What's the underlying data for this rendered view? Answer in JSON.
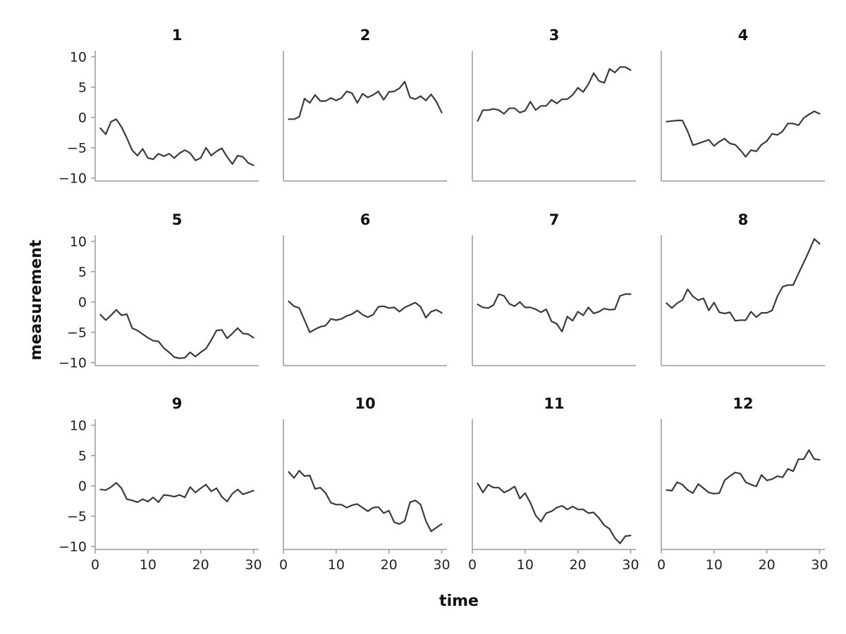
{
  "chart_data": {
    "type": "line",
    "layout": "facet-grid",
    "xlabel": "time",
    "ylabel": "measurement",
    "xlim": [
      0,
      31
    ],
    "ylim": [
      -10.5,
      11
    ],
    "xticks": [
      0,
      10,
      20,
      30
    ],
    "yticks": [
      -10,
      -5,
      0,
      5,
      10
    ],
    "line_color": "#3b3b3b",
    "axis_color": "#9a9a9a",
    "x": [
      1,
      2,
      3,
      4,
      5,
      6,
      7,
      8,
      9,
      10,
      11,
      12,
      13,
      14,
      15,
      16,
      17,
      18,
      19,
      20,
      21,
      22,
      23,
      24,
      25,
      26,
      27,
      28,
      29,
      30
    ],
    "panels": [
      {
        "title": "1",
        "values": [
          -1.8,
          -2.8,
          -0.7,
          -0.3,
          -1.6,
          -3.4,
          -5.4,
          -6.3,
          -5.2,
          -6.7,
          -6.9,
          -6.0,
          -6.4,
          -6.0,
          -6.7,
          -5.9,
          -5.4,
          -5.9,
          -7.1,
          -6.7,
          -5.0,
          -6.3,
          -5.6,
          -5.1,
          -6.5,
          -7.7,
          -6.3,
          -6.5,
          -7.5,
          -7.9
        ]
      },
      {
        "title": "2",
        "values": [
          -0.3,
          -0.3,
          0.1,
          3.1,
          2.4,
          3.7,
          2.7,
          2.7,
          3.2,
          2.8,
          3.2,
          4.3,
          4.0,
          2.4,
          3.9,
          3.3,
          3.7,
          4.3,
          2.9,
          4.2,
          4.3,
          4.8,
          5.9,
          3.3,
          3.0,
          3.5,
          2.8,
          3.8,
          2.6,
          0.8
        ]
      },
      {
        "title": "3",
        "values": [
          -0.6,
          1.2,
          1.2,
          1.4,
          1.2,
          0.6,
          1.5,
          1.5,
          0.8,
          1.1,
          2.6,
          1.2,
          1.9,
          1.9,
          2.9,
          2.3,
          3.0,
          3.0,
          3.7,
          4.9,
          4.2,
          5.5,
          7.3,
          6.0,
          5.7,
          8.0,
          7.4,
          8.3,
          8.3,
          7.8
        ]
      },
      {
        "title": "4",
        "values": [
          -0.7,
          -0.6,
          -0.5,
          -0.5,
          -2.3,
          -4.6,
          -4.3,
          -4.0,
          -3.7,
          -4.7,
          -4.0,
          -3.5,
          -4.3,
          -4.5,
          -5.4,
          -6.5,
          -5.4,
          -5.6,
          -4.5,
          -3.9,
          -2.7,
          -2.9,
          -2.3,
          -1.0,
          -1.0,
          -1.3,
          -0.1,
          0.5,
          1.0,
          0.6
        ]
      },
      {
        "title": "5",
        "values": [
          -2.1,
          -3.0,
          -2.2,
          -1.3,
          -2.2,
          -2.0,
          -4.3,
          -4.7,
          -5.3,
          -5.9,
          -6.4,
          -6.5,
          -7.6,
          -8.3,
          -9.1,
          -9.3,
          -9.2,
          -8.3,
          -9.0,
          -8.3,
          -7.7,
          -6.3,
          -4.7,
          -4.6,
          -6.0,
          -5.2,
          -4.3,
          -5.2,
          -5.3,
          -5.9
        ]
      },
      {
        "title": "6",
        "values": [
          0.1,
          -0.7,
          -1.0,
          -3.0,
          -5.0,
          -4.5,
          -4.1,
          -3.9,
          -2.8,
          -3.0,
          -2.8,
          -2.3,
          -2.0,
          -1.4,
          -2.1,
          -2.5,
          -2.1,
          -0.8,
          -0.7,
          -1.0,
          -0.9,
          -1.6,
          -0.9,
          -0.5,
          -0.1,
          -0.8,
          -2.6,
          -1.6,
          -1.3,
          -1.8
        ]
      },
      {
        "title": "7",
        "values": [
          -0.4,
          -0.9,
          -1.0,
          -0.5,
          1.3,
          1.0,
          -0.3,
          -0.7,
          0.0,
          -0.9,
          -0.9,
          -1.2,
          -1.7,
          -1.2,
          -3.2,
          -3.6,
          -4.9,
          -2.4,
          -3.1,
          -1.6,
          -2.2,
          -0.9,
          -1.9,
          -1.6,
          -1.1,
          -1.3,
          -1.2,
          1.0,
          1.3,
          1.3
        ]
      },
      {
        "title": "8",
        "values": [
          -0.2,
          -1.0,
          -0.2,
          0.3,
          2.1,
          0.9,
          0.3,
          0.6,
          -1.4,
          -0.1,
          -1.7,
          -1.9,
          -1.7,
          -3.1,
          -3.0,
          -3.0,
          -1.6,
          -2.5,
          -1.8,
          -1.8,
          -1.4,
          0.9,
          2.5,
          2.8,
          2.8,
          4.7,
          6.5,
          8.4,
          10.4,
          9.6
        ]
      },
      {
        "title": "9",
        "values": [
          -0.6,
          -0.7,
          -0.2,
          0.5,
          -0.4,
          -2.2,
          -2.4,
          -2.7,
          -2.2,
          -2.6,
          -1.9,
          -2.7,
          -1.5,
          -1.6,
          -1.8,
          -1.5,
          -1.9,
          -0.2,
          -1.1,
          -0.4,
          0.2,
          -0.9,
          -0.4,
          -1.8,
          -2.6,
          -1.3,
          -0.6,
          -1.4,
          -1.1,
          -0.8
        ]
      },
      {
        "title": "10",
        "values": [
          2.3,
          1.3,
          2.5,
          1.6,
          1.7,
          -0.5,
          -0.3,
          -1.2,
          -2.8,
          -3.1,
          -3.1,
          -3.6,
          -3.2,
          -3.0,
          -3.6,
          -4.2,
          -3.6,
          -3.5,
          -4.5,
          -4.1,
          -6.0,
          -6.3,
          -5.8,
          -2.7,
          -2.4,
          -3.1,
          -5.8,
          -7.5,
          -6.9,
          -6.3
        ]
      },
      {
        "title": "11",
        "values": [
          0.4,
          -1.1,
          0.2,
          -0.3,
          -0.3,
          -1.1,
          -0.7,
          -0.1,
          -2.1,
          -1.2,
          -2.8,
          -4.9,
          -5.9,
          -4.5,
          -4.2,
          -3.6,
          -3.3,
          -3.9,
          -3.4,
          -3.9,
          -3.9,
          -4.5,
          -4.4,
          -5.3,
          -6.5,
          -7.1,
          -8.6,
          -9.5,
          -8.3,
          -8.2
        ]
      },
      {
        "title": "12",
        "values": [
          -0.7,
          -0.8,
          0.6,
          0.2,
          -0.7,
          -1.2,
          0.3,
          -0.4,
          -1.1,
          -1.3,
          -1.2,
          0.9,
          1.6,
          2.2,
          2.0,
          0.6,
          0.2,
          -0.1,
          1.8,
          0.9,
          1.1,
          1.6,
          1.4,
          2.8,
          2.4,
          4.4,
          4.4,
          5.9,
          4.4,
          4.3
        ]
      }
    ]
  }
}
